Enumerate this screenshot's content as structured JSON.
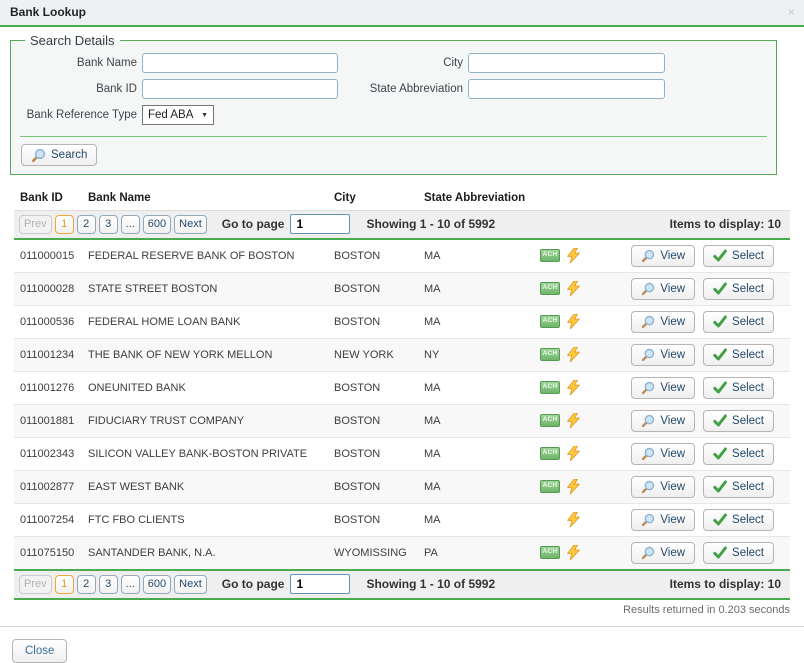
{
  "header": {
    "title": "Bank Lookup"
  },
  "search": {
    "legend": "Search Details",
    "fields": {
      "bank_name": {
        "label": "Bank Name",
        "value": ""
      },
      "city": {
        "label": "City",
        "value": ""
      },
      "bank_id": {
        "label": "Bank ID",
        "value": ""
      },
      "state_abbreviation": {
        "label": "State Abbreviation",
        "value": ""
      },
      "bank_reference_type": {
        "label": "Bank Reference Type",
        "value": "Fed ABA"
      }
    },
    "search_button": "Search"
  },
  "table": {
    "columns": [
      "Bank ID",
      "Bank Name",
      "City",
      "State Abbreviation"
    ],
    "icons": {
      "ach_label": "ACH",
      "wire_icon": "lightning-bolt"
    },
    "actions": {
      "view": "View",
      "select": "Select"
    },
    "rows": [
      {
        "bank_id": "011000015",
        "bank_name": "FEDERAL RESERVE BANK OF BOSTON",
        "city": "BOSTON",
        "state": "MA",
        "ach": true,
        "wire": true
      },
      {
        "bank_id": "011000028",
        "bank_name": "STATE STREET BOSTON",
        "city": "BOSTON",
        "state": "MA",
        "ach": true,
        "wire": true
      },
      {
        "bank_id": "011000536",
        "bank_name": "FEDERAL HOME LOAN BANK",
        "city": "BOSTON",
        "state": "MA",
        "ach": true,
        "wire": true
      },
      {
        "bank_id": "011001234",
        "bank_name": "THE BANK OF NEW YORK MELLON",
        "city": "NEW YORK",
        "state": "NY",
        "ach": true,
        "wire": true
      },
      {
        "bank_id": "011001276",
        "bank_name": "ONEUNITED BANK",
        "city": "BOSTON",
        "state": "MA",
        "ach": true,
        "wire": true
      },
      {
        "bank_id": "011001881",
        "bank_name": "FIDUCIARY TRUST COMPANY",
        "city": "BOSTON",
        "state": "MA",
        "ach": true,
        "wire": true
      },
      {
        "bank_id": "011002343",
        "bank_name": "SILICON VALLEY BANK-BOSTON PRIVATE",
        "city": "BOSTON",
        "state": "MA",
        "ach": true,
        "wire": true
      },
      {
        "bank_id": "011002877",
        "bank_name": "EAST WEST BANK",
        "city": "BOSTON",
        "state": "MA",
        "ach": true,
        "wire": true
      },
      {
        "bank_id": "011007254",
        "bank_name": "FTC FBO CLIENTS",
        "city": "BOSTON",
        "state": "MA",
        "ach": false,
        "wire": true
      },
      {
        "bank_id": "011075150",
        "bank_name": "SANTANDER BANK, N.A.",
        "city": "WYOMISSING",
        "state": "PA",
        "ach": true,
        "wire": true
      }
    ]
  },
  "pagination": {
    "prev": "Prev",
    "pages": [
      "1",
      "2",
      "3",
      "...",
      "600"
    ],
    "active_page": "1",
    "next": "Next",
    "go_to_page_label": "Go to page",
    "go_to_page_value": "1",
    "showing": "Showing 1 - 10 of 5992",
    "items_to_display": "Items to display: 10"
  },
  "footer": {
    "results_time": "Results returned in 0.203 seconds",
    "close_button": "Close"
  },
  "colors": {
    "accent_green": "#4AAB4E",
    "active_page_orange": "#F0A63F",
    "button_text_navy": "#24496B"
  }
}
